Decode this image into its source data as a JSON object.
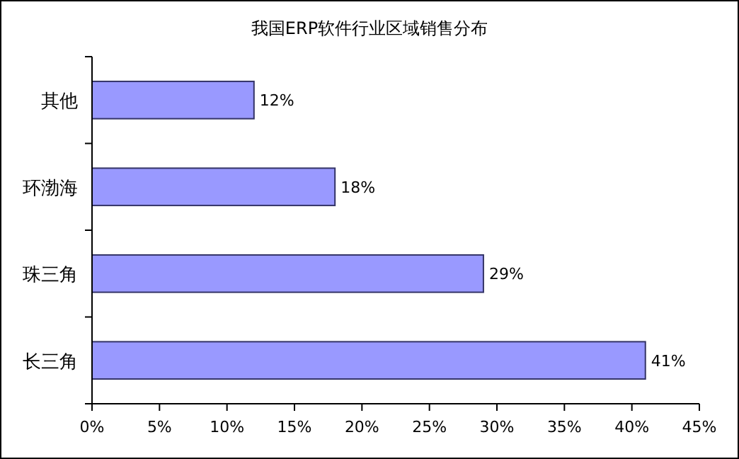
{
  "chart_data": {
    "type": "bar",
    "orientation": "horizontal",
    "title": "我国ERP软件行业区域销售分布",
    "categories": [
      "其他",
      "环渤海",
      "珠三角",
      "长三角"
    ],
    "values": [
      12,
      18,
      29,
      41
    ],
    "value_labels": [
      "12%",
      "18%",
      "29%",
      "41%"
    ],
    "color": "#9999ff",
    "xlim": [
      0,
      45
    ],
    "xticks": [
      {
        "value": 0,
        "label": "0%"
      },
      {
        "value": 5,
        "label": "5%"
      },
      {
        "value": 10,
        "label": "10%"
      },
      {
        "value": 15,
        "label": "15%"
      },
      {
        "value": 20,
        "label": "20%"
      },
      {
        "value": 25,
        "label": "25%"
      },
      {
        "value": 30,
        "label": "30%"
      },
      {
        "value": 35,
        "label": "35%"
      },
      {
        "value": 40,
        "label": "40%"
      },
      {
        "value": 45,
        "label": "45%"
      }
    ],
    "grid": false
  }
}
